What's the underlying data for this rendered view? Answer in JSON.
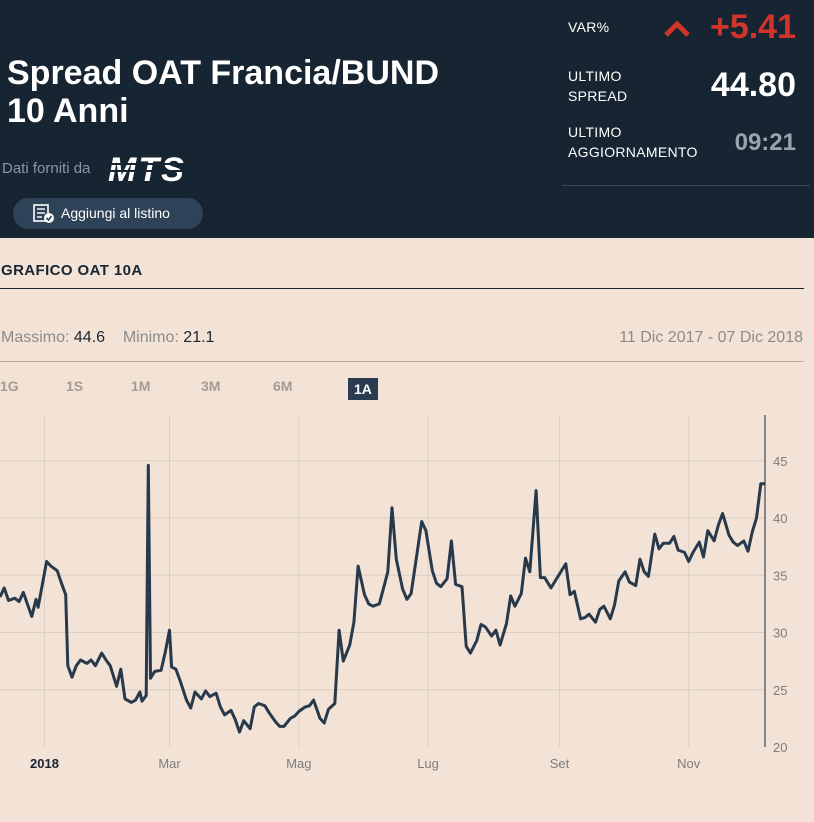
{
  "header": {
    "title_line1": "Spread OAT Francia/BUND",
    "title_line2": "10 Anni",
    "provider_label": "Dati forniti da",
    "logo_text": "MTS",
    "var_label": "VAR%",
    "var_value": "+5.41",
    "var_color": "#d2342c",
    "last_spread_label1": "ULTIMO",
    "last_spread_label2": "SPREAD",
    "last_spread_value": "44.80",
    "last_update_label1": "ULTIMO",
    "last_update_label2": "AGGIORNAMENTO",
    "last_update_value": "09:21",
    "add_button_label": "Aggiungi al listino",
    "add_button_icon": "checklist-icon"
  },
  "chart_section": {
    "title": "GRAFICO  OAT 10A",
    "max_label": "Massimo:",
    "max_value": "44.6",
    "min_label": "Minimo:",
    "min_value": "21.1",
    "date_range": "11 Dic 2017 - 07 Dic 2018",
    "timeframes": [
      "1G",
      "1S",
      "1M",
      "3M",
      "6M",
      "1A"
    ],
    "active_timeframe": "1A"
  },
  "chart_data": {
    "type": "line",
    "title": "",
    "xlabel": "",
    "ylabel": "",
    "ylim": [
      20,
      49
    ],
    "yticks": [
      20,
      25,
      30,
      35,
      40,
      45
    ],
    "x_tick_labels": [
      "2018",
      "Mar",
      "Mag",
      "Lug",
      "Set",
      "Nov"
    ],
    "x_tick_dates": [
      "2018-01-01",
      "2018-03-01",
      "2018-05-01",
      "2018-07-01",
      "2018-09-01",
      "2018-11-01"
    ],
    "xlim": [
      "2017-12-11",
      "2018-12-07"
    ],
    "grid": true,
    "line_color": "#27394b",
    "series": [
      {
        "name": "",
        "points": [
          [
            "2017-12-11",
            33.1
          ],
          [
            "2017-12-13",
            33.9
          ],
          [
            "2017-12-15",
            32.8
          ],
          [
            "2017-12-18",
            33.0
          ],
          [
            "2017-12-20",
            32.7
          ],
          [
            "2017-12-22",
            33.5
          ],
          [
            "2017-12-26",
            31.4
          ],
          [
            "2017-12-28",
            32.9
          ],
          [
            "2017-12-29",
            32.2
          ],
          [
            "2018-01-02",
            36.2
          ],
          [
            "2018-01-04",
            35.8
          ],
          [
            "2018-01-07",
            35.4
          ],
          [
            "2018-01-09",
            34.3
          ],
          [
            "2018-01-11",
            33.3
          ],
          [
            "2018-01-12",
            27.1
          ],
          [
            "2018-01-14",
            26.1
          ],
          [
            "2018-01-16",
            27.1
          ],
          [
            "2018-01-18",
            27.6
          ],
          [
            "2018-01-21",
            27.3
          ],
          [
            "2018-01-23",
            27.6
          ],
          [
            "2018-01-25",
            27.1
          ],
          [
            "2018-01-28",
            28.2
          ],
          [
            "2018-01-30",
            27.6
          ],
          [
            "2018-02-01",
            27.1
          ],
          [
            "2018-02-04",
            25.3
          ],
          [
            "2018-02-06",
            26.8
          ],
          [
            "2018-02-08",
            24.2
          ],
          [
            "2018-02-11",
            23.9
          ],
          [
            "2018-02-13",
            24.1
          ],
          [
            "2018-02-15",
            24.8
          ],
          [
            "2018-02-16",
            24.0
          ],
          [
            "2018-02-18",
            24.5
          ],
          [
            "2018-02-19",
            44.6
          ],
          [
            "2018-02-20",
            26.0
          ],
          [
            "2018-02-22",
            26.6
          ],
          [
            "2018-02-25",
            26.7
          ],
          [
            "2018-02-27",
            28.3
          ],
          [
            "2018-03-01",
            30.2
          ],
          [
            "2018-03-02",
            27.0
          ],
          [
            "2018-03-04",
            26.8
          ],
          [
            "2018-03-06",
            25.8
          ],
          [
            "2018-03-09",
            24.1
          ],
          [
            "2018-03-11",
            23.4
          ],
          [
            "2018-03-13",
            24.8
          ],
          [
            "2018-03-16",
            24.2
          ],
          [
            "2018-03-18",
            24.9
          ],
          [
            "2018-03-20",
            24.4
          ],
          [
            "2018-03-23",
            24.7
          ],
          [
            "2018-03-25",
            23.5
          ],
          [
            "2018-03-27",
            22.8
          ],
          [
            "2018-03-30",
            23.2
          ],
          [
            "2018-04-01",
            22.4
          ],
          [
            "2018-04-03",
            21.3
          ],
          [
            "2018-04-05",
            22.3
          ],
          [
            "2018-04-08",
            21.6
          ],
          [
            "2018-04-10",
            23.5
          ],
          [
            "2018-04-12",
            23.8
          ],
          [
            "2018-04-15",
            23.6
          ],
          [
            "2018-04-17",
            23.0
          ],
          [
            "2018-04-20",
            22.2
          ],
          [
            "2018-04-22",
            21.8
          ],
          [
            "2018-04-24",
            21.8
          ],
          [
            "2018-04-27",
            22.5
          ],
          [
            "2018-04-29",
            22.7
          ],
          [
            "2018-05-01",
            23.1
          ],
          [
            "2018-05-04",
            23.5
          ],
          [
            "2018-05-06",
            23.6
          ],
          [
            "2018-05-08",
            24.1
          ],
          [
            "2018-05-11",
            22.5
          ],
          [
            "2018-05-13",
            22.1
          ],
          [
            "2018-05-15",
            23.3
          ],
          [
            "2018-05-18",
            23.8
          ],
          [
            "2018-05-20",
            30.2
          ],
          [
            "2018-05-22",
            27.5
          ],
          [
            "2018-05-25",
            28.9
          ],
          [
            "2018-05-27",
            30.9
          ],
          [
            "2018-05-29",
            35.8
          ],
          [
            "2018-06-01",
            33.3
          ],
          [
            "2018-06-03",
            32.5
          ],
          [
            "2018-06-05",
            32.3
          ],
          [
            "2018-06-08",
            32.5
          ],
          [
            "2018-06-10",
            33.9
          ],
          [
            "2018-06-12",
            35.3
          ],
          [
            "2018-06-14",
            40.9
          ],
          [
            "2018-06-16",
            36.4
          ],
          [
            "2018-06-19",
            33.8
          ],
          [
            "2018-06-21",
            32.9
          ],
          [
            "2018-06-23",
            33.4
          ],
          [
            "2018-06-26",
            37.2
          ],
          [
            "2018-06-28",
            39.7
          ],
          [
            "2018-06-30",
            38.9
          ],
          [
            "2018-07-03",
            35.4
          ],
          [
            "2018-07-05",
            34.3
          ],
          [
            "2018-07-07",
            34.0
          ],
          [
            "2018-07-10",
            34.7
          ],
          [
            "2018-07-12",
            38.0
          ],
          [
            "2018-07-14",
            34.2
          ],
          [
            "2018-07-17",
            34.0
          ],
          [
            "2018-07-19",
            28.8
          ],
          [
            "2018-07-21",
            28.2
          ],
          [
            "2018-07-24",
            29.3
          ],
          [
            "2018-07-26",
            30.7
          ],
          [
            "2018-07-28",
            30.5
          ],
          [
            "2018-07-31",
            29.7
          ],
          [
            "2018-08-02",
            30.2
          ],
          [
            "2018-08-04",
            28.9
          ],
          [
            "2018-08-07",
            30.8
          ],
          [
            "2018-08-09",
            33.2
          ],
          [
            "2018-08-11",
            32.3
          ],
          [
            "2018-08-14",
            33.4
          ],
          [
            "2018-08-16",
            36.5
          ],
          [
            "2018-08-18",
            35.3
          ],
          [
            "2018-08-21",
            42.4
          ],
          [
            "2018-08-23",
            34.8
          ],
          [
            "2018-08-25",
            34.8
          ],
          [
            "2018-08-28",
            33.9
          ],
          [
            "2018-08-30",
            34.5
          ],
          [
            "2018-09-01",
            35.1
          ],
          [
            "2018-09-04",
            36.0
          ],
          [
            "2018-09-06",
            33.3
          ],
          [
            "2018-09-08",
            33.6
          ],
          [
            "2018-09-11",
            31.2
          ],
          [
            "2018-09-13",
            31.3
          ],
          [
            "2018-09-15",
            31.6
          ],
          [
            "2018-09-18",
            30.9
          ],
          [
            "2018-09-20",
            32.0
          ],
          [
            "2018-09-22",
            32.3
          ],
          [
            "2018-09-25",
            31.2
          ],
          [
            "2018-09-27",
            32.4
          ],
          [
            "2018-09-29",
            34.5
          ],
          [
            "2018-10-02",
            35.3
          ],
          [
            "2018-10-04",
            34.4
          ],
          [
            "2018-10-07",
            34.1
          ],
          [
            "2018-10-09",
            36.4
          ],
          [
            "2018-10-11",
            35.3
          ],
          [
            "2018-10-13",
            34.9
          ],
          [
            "2018-10-16",
            38.6
          ],
          [
            "2018-10-18",
            37.3
          ],
          [
            "2018-10-20",
            37.8
          ],
          [
            "2018-10-23",
            37.8
          ],
          [
            "2018-10-25",
            38.4
          ],
          [
            "2018-10-27",
            37.2
          ],
          [
            "2018-10-30",
            37.0
          ],
          [
            "2018-11-01",
            36.2
          ],
          [
            "2018-11-03",
            37.0
          ],
          [
            "2018-11-06",
            37.9
          ],
          [
            "2018-11-08",
            36.6
          ],
          [
            "2018-11-10",
            38.9
          ],
          [
            "2018-11-13",
            38.0
          ],
          [
            "2018-11-15",
            39.4
          ],
          [
            "2018-11-17",
            40.4
          ],
          [
            "2018-11-20",
            38.5
          ],
          [
            "2018-11-22",
            37.9
          ],
          [
            "2018-11-24",
            37.6
          ],
          [
            "2018-11-27",
            38.0
          ],
          [
            "2018-11-29",
            37.1
          ],
          [
            "2018-12-01",
            38.8
          ],
          [
            "2018-12-03",
            40.0
          ],
          [
            "2018-12-05",
            43.0
          ],
          [
            "2018-12-07",
            43.0
          ]
        ]
      }
    ]
  }
}
